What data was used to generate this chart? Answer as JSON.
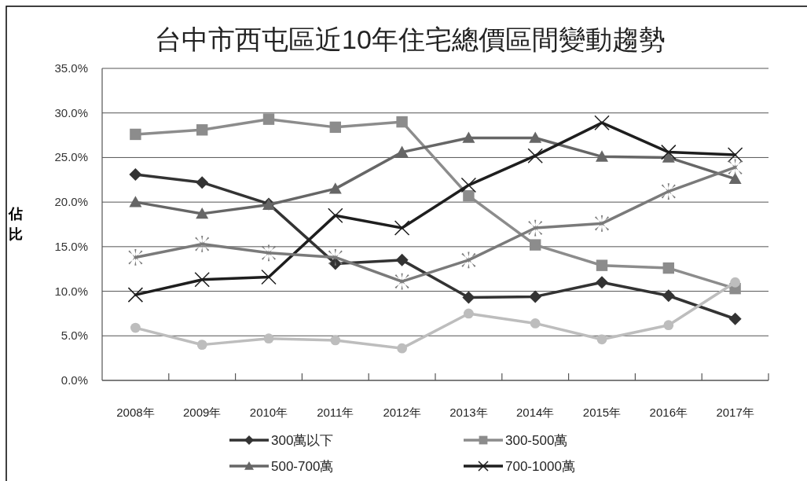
{
  "chart_data": {
    "type": "line",
    "title": "台中市西屯區近10年住宅總價區間變動趨勢",
    "ylabel": "佔比",
    "categories": [
      "2008年",
      "2009年",
      "2010年",
      "2011年",
      "2012年",
      "2013年",
      "2014年",
      "2015年",
      "2016年",
      "2017年"
    ],
    "ylim": [
      0,
      35
    ],
    "yticks": [
      {
        "value": 0,
        "label": "0.0%"
      },
      {
        "value": 5,
        "label": "5.0%"
      },
      {
        "value": 10,
        "label": "10.0%"
      },
      {
        "value": 15,
        "label": "15.0%"
      },
      {
        "value": 20,
        "label": "20.0%"
      },
      {
        "value": 25,
        "label": "25.0%"
      },
      {
        "value": 30,
        "label": "30.0%"
      },
      {
        "value": 35,
        "label": "35.0%"
      }
    ],
    "grid": "y",
    "legend": "bottom",
    "series": [
      {
        "name": "300萬以下",
        "color": "#333333",
        "marker": "diamond",
        "values": [
          23.1,
          22.2,
          19.8,
          13.1,
          13.5,
          9.3,
          9.4,
          11.0,
          9.5,
          6.9
        ]
      },
      {
        "name": "300-500萬",
        "color": "#8c8c8c",
        "marker": "square",
        "values": [
          27.6,
          28.1,
          29.3,
          28.4,
          29.0,
          20.7,
          15.2,
          12.9,
          12.6,
          10.3
        ]
      },
      {
        "name": "500-700萬",
        "color": "#666666",
        "marker": "triangle",
        "values": [
          20.0,
          18.7,
          19.7,
          21.5,
          25.6,
          27.2,
          27.2,
          25.1,
          25.0,
          22.6
        ]
      },
      {
        "name": "700-1000萬",
        "color": "#1e1e1e",
        "marker": "cross",
        "values": [
          9.6,
          11.3,
          11.6,
          18.5,
          17.1,
          21.9,
          25.2,
          28.9,
          25.6,
          25.3
        ]
      },
      {
        "color": "#7a7a7a",
        "marker": "star",
        "values": [
          13.8,
          15.3,
          14.3,
          13.8,
          11.1,
          13.5,
          17.1,
          17.6,
          21.2,
          23.9
        ]
      },
      {
        "color": "#bdbdbd",
        "marker": "circle",
        "values": [
          5.9,
          4.0,
          4.7,
          4.5,
          3.6,
          7.5,
          6.4,
          4.6,
          6.2,
          11.0
        ]
      }
    ]
  }
}
